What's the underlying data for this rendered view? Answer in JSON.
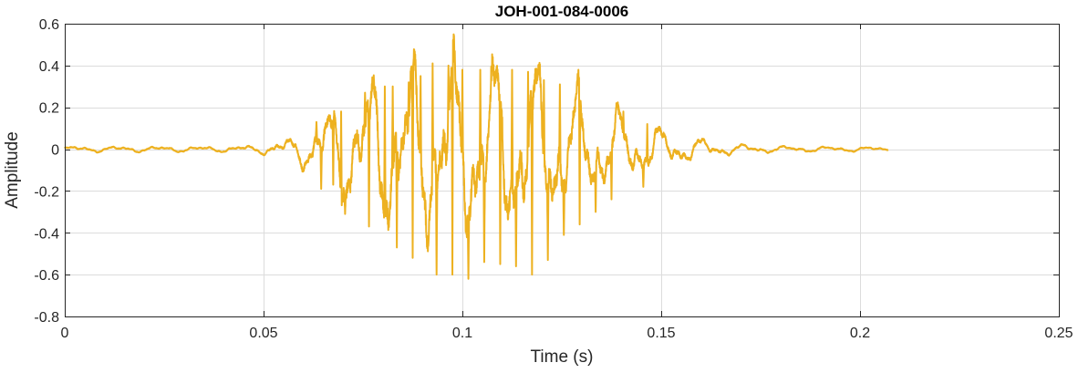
{
  "chart_data": {
    "type": "line",
    "title": "JOH-001-084-0006",
    "xlabel": "Time (s)",
    "ylabel": "Amplitude",
    "xlim": [
      0,
      0.25
    ],
    "ylim": [
      -0.8,
      0.6
    ],
    "grid": true,
    "xticks": [
      0,
      0.05,
      0.1,
      0.15,
      0.2,
      0.25
    ],
    "xtick_labels": [
      "0",
      "0.05",
      "0.1",
      "0.15",
      "0.2",
      "0.25"
    ],
    "yticks": [
      -0.8,
      -0.6,
      -0.4,
      -0.2,
      0,
      0.2,
      0.4,
      0.6
    ],
    "ytick_labels": [
      "-0.8",
      "-0.6",
      "-0.4",
      "-0.2",
      "0",
      "0.2",
      "0.4",
      "0.6"
    ],
    "series": [
      {
        "color": "#EDB120",
        "duration": 0.207,
        "envelope": [
          [
            0,
            0.012
          ],
          [
            0.04,
            0.012
          ],
          [
            0.049,
            0.018
          ],
          [
            0.055,
            0.04
          ],
          [
            0.06,
            0.08
          ],
          [
            0.065,
            0.16
          ],
          [
            0.07,
            0.24
          ],
          [
            0.075,
            0.3
          ],
          [
            0.08,
            0.35
          ],
          [
            0.085,
            0.38
          ],
          [
            0.09,
            0.4
          ],
          [
            0.095,
            0.42
          ],
          [
            0.1,
            0.4
          ],
          [
            0.105,
            0.39
          ],
          [
            0.11,
            0.39
          ],
          [
            0.115,
            0.38
          ],
          [
            0.12,
            0.34
          ],
          [
            0.125,
            0.3
          ],
          [
            0.13,
            0.25
          ],
          [
            0.135,
            0.2
          ],
          [
            0.14,
            0.16
          ],
          [
            0.145,
            0.12
          ],
          [
            0.15,
            0.09
          ],
          [
            0.155,
            0.065
          ],
          [
            0.16,
            0.045
          ],
          [
            0.165,
            0.03
          ],
          [
            0.17,
            0.02
          ],
          [
            0.18,
            0.013
          ],
          [
            0.2,
            0.01
          ],
          [
            0.207,
            0.008
          ]
        ],
        "peaks": [
          {
            "t": 0.0633,
            "y": 0.13
          },
          {
            "t": 0.0645,
            "y": -0.19
          },
          {
            "t": 0.0675,
            "y": -0.17
          },
          {
            "t": 0.0695,
            "y": 0.18
          },
          {
            "t": 0.0705,
            "y": -0.31
          },
          {
            "t": 0.0755,
            "y": 0.27
          },
          {
            "t": 0.0765,
            "y": -0.37
          },
          {
            "t": 0.0775,
            "y": 0.29
          },
          {
            "t": 0.0805,
            "y": 0.3
          },
          {
            "t": 0.0825,
            "y": 0.3
          },
          {
            "t": 0.0835,
            "y": -0.47
          },
          {
            "t": 0.0865,
            "y": 0.32
          },
          {
            "t": 0.0875,
            "y": -0.52
          },
          {
            "t": 0.0895,
            "y": 0.35
          },
          {
            "t": 0.0925,
            "y": 0.41
          },
          {
            "t": 0.0935,
            "y": -0.6
          },
          {
            "t": 0.0965,
            "y": 0.4
          },
          {
            "t": 0.0975,
            "y": -0.6
          },
          {
            "t": 0.1,
            "y": 0.38
          },
          {
            "t": 0.1015,
            "y": -0.62
          },
          {
            "t": 0.1045,
            "y": 0.38
          },
          {
            "t": 0.1055,
            "y": -0.54
          },
          {
            "t": 0.1085,
            "y": 0.37
          },
          {
            "t": 0.1095,
            "y": -0.55
          },
          {
            "t": 0.1125,
            "y": 0.38
          },
          {
            "t": 0.1135,
            "y": -0.56
          },
          {
            "t": 0.1165,
            "y": 0.37
          },
          {
            "t": 0.1175,
            "y": -0.6
          },
          {
            "t": 0.1205,
            "y": 0.33
          },
          {
            "t": 0.1215,
            "y": -0.53
          },
          {
            "t": 0.1245,
            "y": 0.31
          },
          {
            "t": 0.1255,
            "y": -0.41
          },
          {
            "t": 0.1285,
            "y": 0.25
          },
          {
            "t": 0.1295,
            "y": -0.36
          },
          {
            "t": 0.1335,
            "y": -0.3
          },
          {
            "t": 0.1375,
            "y": -0.24
          },
          {
            "t": 0.1405,
            "y": 0.18
          },
          {
            "t": 0.1455,
            "y": -0.18
          },
          {
            "t": 0.1465,
            "y": 0.12
          }
        ]
      }
    ]
  }
}
